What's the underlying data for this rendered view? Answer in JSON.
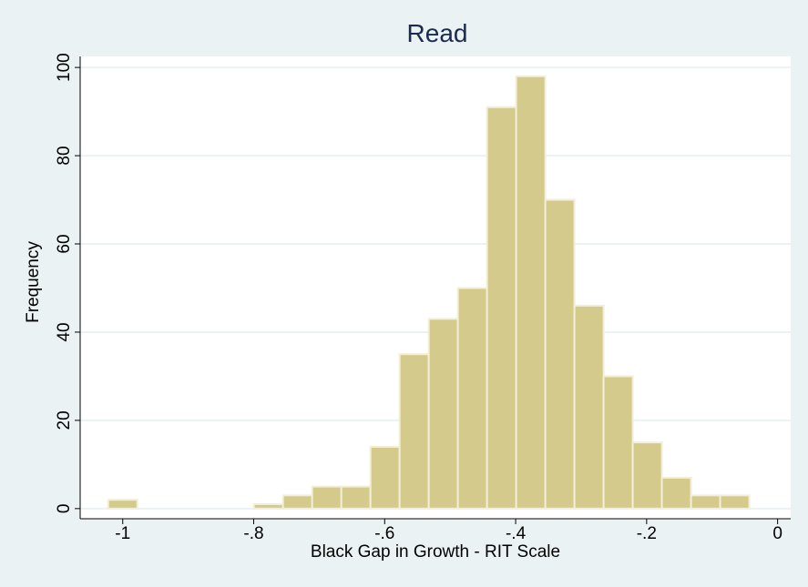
{
  "chart_data": {
    "type": "histogram",
    "title": "Read",
    "x_label": "Black Gap in Growth - RIT Scale",
    "y_label": "Frequency",
    "bins": [
      -1.0222,
      -0.9777,
      -0.9332,
      -0.8887,
      -0.8442,
      -0.7997,
      -0.7552,
      -0.7107,
      -0.6662,
      -0.6217,
      -0.5772,
      -0.5327,
      -0.4882,
      -0.4437,
      -0.3992,
      -0.3547,
      -0.3102,
      -0.2657,
      -0.2212,
      -0.1767,
      -0.1322,
      -0.0877,
      -0.0432
    ],
    "values": [
      2,
      0,
      0,
      0,
      0,
      1,
      3,
      5,
      5,
      14,
      35,
      43,
      50,
      91,
      98,
      70,
      46,
      30,
      15,
      7,
      3,
      3
    ],
    "color": "#d4ca8c",
    "xlim": [
      -1.065,
      0.02
    ],
    "xticks": [
      {
        "value": -1,
        "label": "-1"
      },
      {
        "value": -0.8,
        "label": "-.8"
      },
      {
        "value": -0.6,
        "label": "-.6"
      },
      {
        "value": -0.4,
        "label": "-.4"
      },
      {
        "value": -0.2,
        "label": "-.2"
      },
      0
    ],
    "ylim": [
      -2.3,
      102.5
    ],
    "yticks": [
      0,
      20,
      40,
      60,
      80,
      100
    ],
    "grid": true
  }
}
